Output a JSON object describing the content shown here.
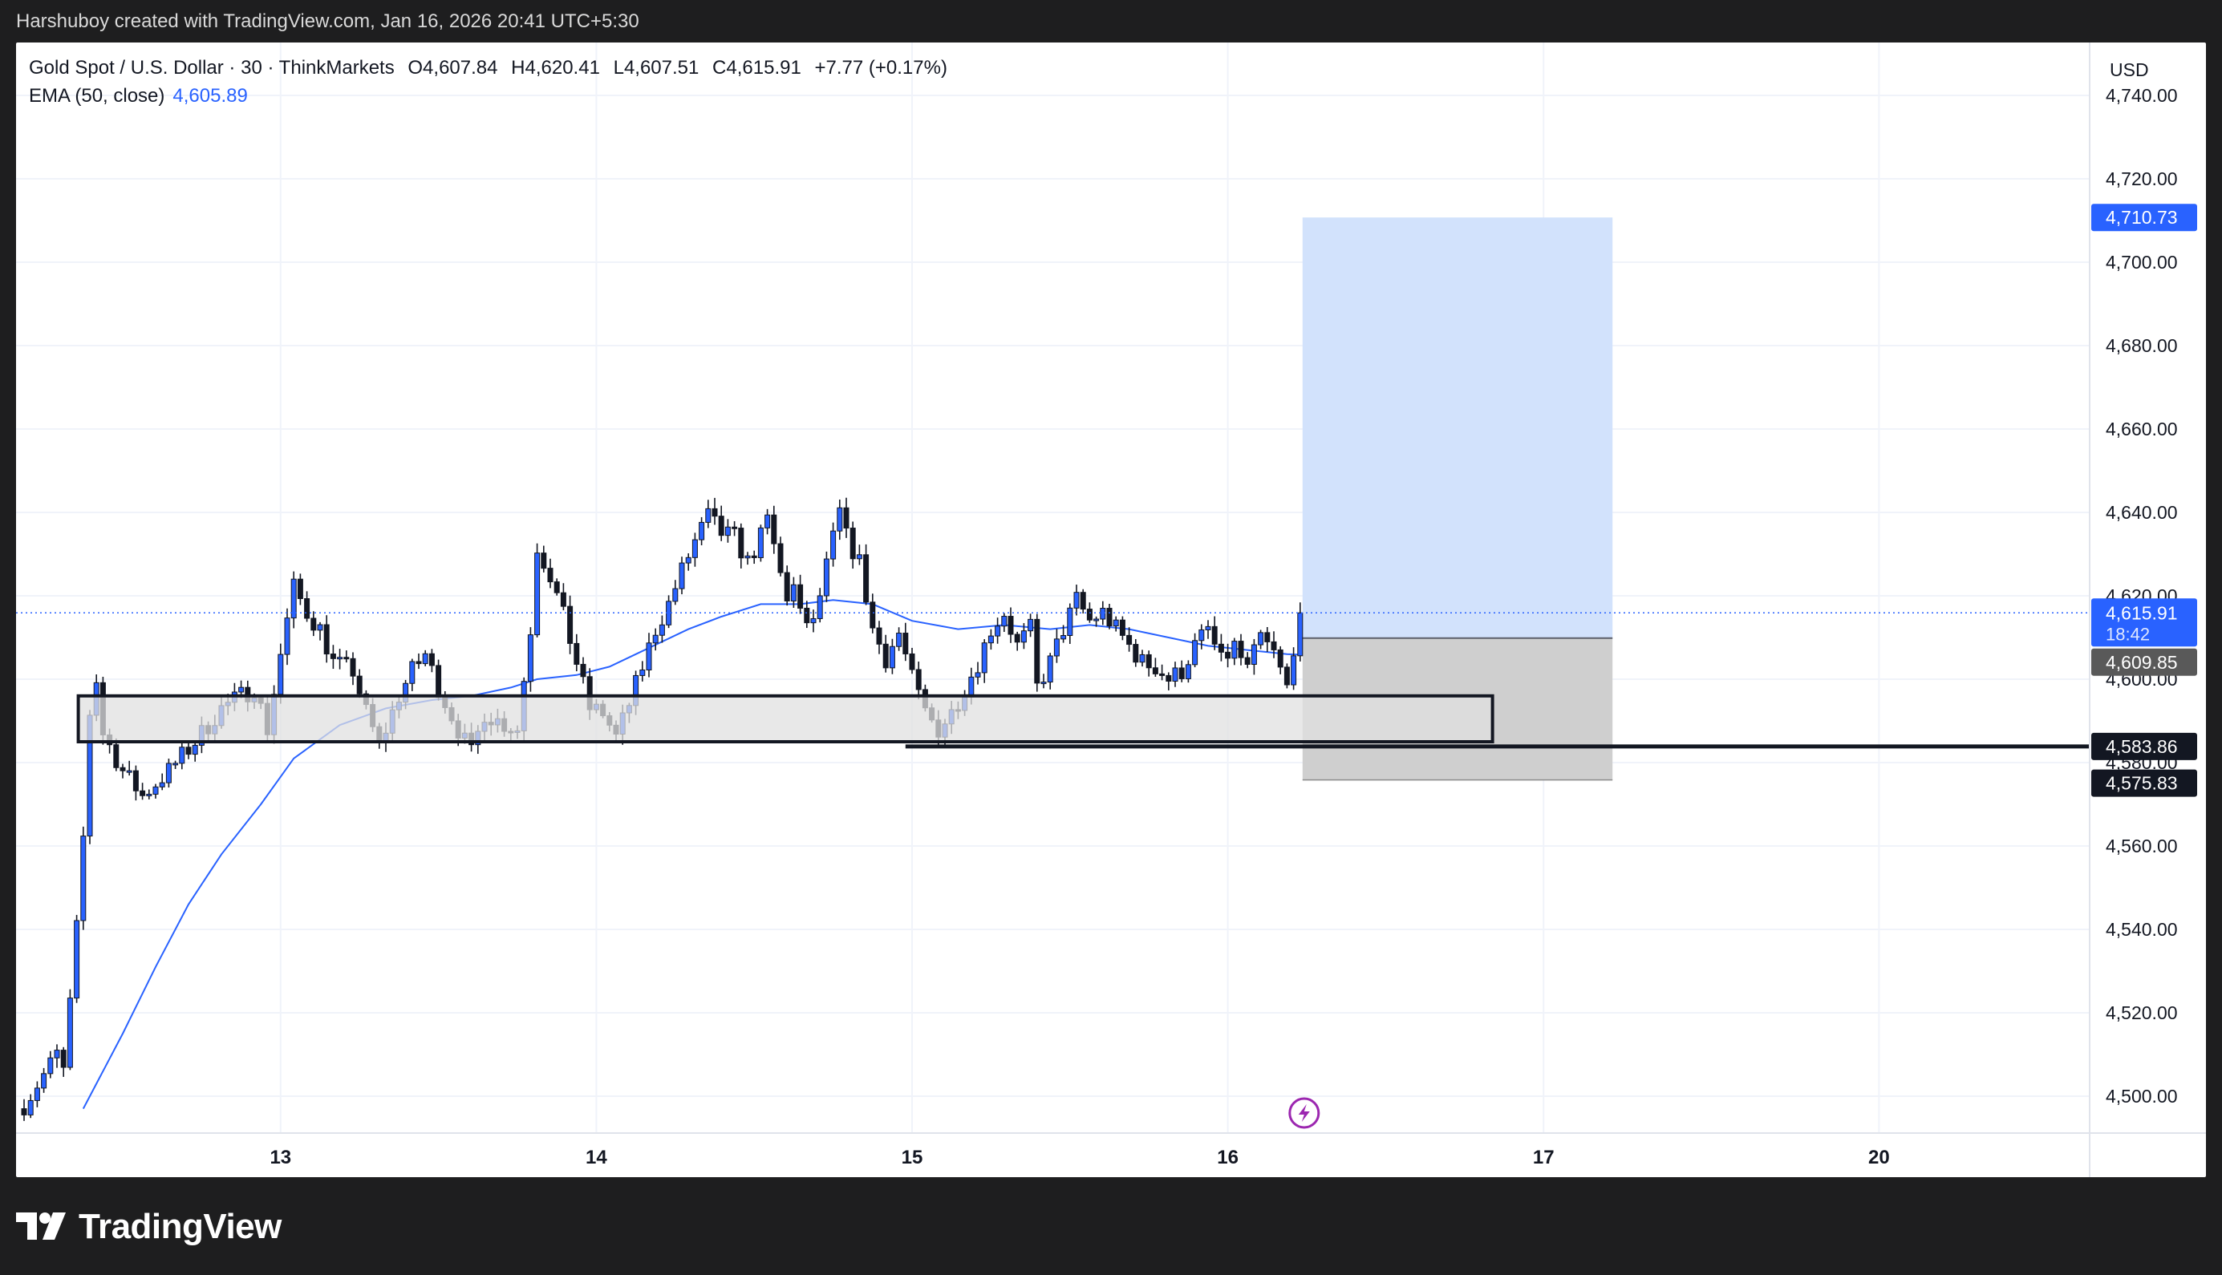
{
  "header": {
    "attribution": "Harshuboy created with TradingView.com, Jan 16, 2026 20:41 UTC+5:30"
  },
  "legend": {
    "symbol": "Gold Spot / U.S. Dollar · 30 · ThinkMarkets",
    "open": "O4,607.84",
    "high": "H4,620.41",
    "low": "L4,607.51",
    "close": "C4,615.91",
    "change": "+7.77 (+0.17%)",
    "ema_label": "EMA (50, close)",
    "ema_value": "4,605.89"
  },
  "axis": {
    "currency": "USD",
    "ticks": [
      "4,740.00",
      "4,720.00",
      "4,700.00",
      "4,680.00",
      "4,660.00",
      "4,640.00",
      "4,620.00",
      "4,600.00",
      "4,580.00",
      "4,560.00",
      "4,540.00",
      "4,520.00",
      "4,500.00"
    ],
    "dates": [
      "13",
      "14",
      "15",
      "16",
      "17",
      "20"
    ]
  },
  "price_labels": {
    "target": "4,710.73",
    "current": "4,615.91",
    "countdown": "18:42",
    "entry": "4,609.85",
    "line": "4,583.86",
    "stop": "4,575.83"
  },
  "colors": {
    "bull_body": "#2962ff",
    "bear_body": "#131722",
    "ema": "#2962ff",
    "target_zone": "#d2e2fc",
    "stop_zone": "#cfcfcf",
    "support_box": "#e0e0e0",
    "label_blue": "#2962ff",
    "label_dark": "#131722",
    "label_gray": "#595959"
  },
  "footer": {
    "brand": "TradingView",
    "logo_icon": "tradingview-logo-icon"
  },
  "chart_data": {
    "type": "candlestick",
    "title": "Gold Spot / U.S. Dollar · 30 · ThinkMarkets",
    "ylabel": "USD",
    "ylim": [
      4495,
      4745
    ],
    "x_ticks": [
      "13",
      "14",
      "15",
      "16",
      "17",
      "20"
    ],
    "candles_per_day": 48,
    "first_date_tick_index": 39,
    "keypoints": [
      [
        0,
        4498
      ],
      [
        5,
        4510
      ],
      [
        6,
        4506
      ],
      [
        7,
        4522
      ],
      [
        8,
        4540
      ],
      [
        9,
        4562
      ],
      [
        10,
        4592
      ],
      [
        11,
        4600
      ],
      [
        12,
        4587
      ],
      [
        15,
        4578
      ],
      [
        18,
        4572
      ],
      [
        22,
        4578
      ],
      [
        26,
        4585
      ],
      [
        30,
        4593
      ],
      [
        35,
        4598
      ],
      [
        37,
        4588
      ],
      [
        39,
        4606
      ],
      [
        41,
        4622
      ],
      [
        43,
        4616
      ],
      [
        45,
        4612
      ],
      [
        47,
        4604
      ],
      [
        50,
        4602
      ],
      [
        52,
        4592
      ],
      [
        54,
        4584
      ],
      [
        57,
        4596
      ],
      [
        59,
        4602
      ],
      [
        61,
        4606
      ],
      [
        63,
        4598
      ],
      [
        66,
        4588
      ],
      [
        68,
        4582
      ],
      [
        70,
        4592
      ],
      [
        72,
        4590
      ],
      [
        75,
        4588
      ],
      [
        77,
        4612
      ],
      [
        78,
        4632
      ],
      [
        80,
        4625
      ],
      [
        82,
        4615
      ],
      [
        84,
        4604
      ],
      [
        86,
        4593
      ],
      [
        88,
        4592
      ],
      [
        90,
        4586
      ],
      [
        92,
        4594
      ],
      [
        94,
        4603
      ],
      [
        96,
        4612
      ],
      [
        98,
        4618
      ],
      [
        100,
        4626
      ],
      [
        102,
        4633
      ],
      [
        104,
        4639
      ],
      [
        106,
        4635
      ],
      [
        108,
        4634
      ],
      [
        110,
        4628
      ],
      [
        112,
        4634
      ],
      [
        113,
        4638
      ],
      [
        114,
        4632
      ],
      [
        115,
        4625
      ],
      [
        116,
        4620
      ],
      [
        117,
        4622
      ],
      [
        118,
        4615
      ],
      [
        120,
        4613
      ],
      [
        122,
        4627
      ],
      [
        124,
        4640
      ],
      [
        125,
        4634
      ],
      [
        127,
        4628
      ],
      [
        128,
        4620
      ],
      [
        129,
        4612
      ],
      [
        131,
        4605
      ],
      [
        133,
        4611
      ],
      [
        135,
        4600
      ],
      [
        137,
        4592
      ],
      [
        139,
        4588
      ],
      [
        141,
        4592
      ],
      [
        143,
        4598
      ],
      [
        145,
        4604
      ],
      [
        147,
        4612
      ],
      [
        149,
        4616
      ],
      [
        151,
        4608
      ],
      [
        153,
        4612
      ],
      [
        154,
        4598
      ],
      [
        156,
        4604
      ],
      [
        158,
        4612
      ],
      [
        160,
        4619
      ],
      [
        162,
        4614
      ],
      [
        164,
        4616
      ],
      [
        166,
        4612
      ],
      [
        168,
        4608
      ],
      [
        170,
        4604
      ],
      [
        172,
        4603
      ],
      [
        174,
        4600
      ],
      [
        176,
        4602
      ],
      [
        178,
        4608
      ],
      [
        180,
        4612
      ],
      [
        182,
        4604
      ],
      [
        184,
        4608
      ],
      [
        186,
        4602
      ],
      [
        188,
        4610
      ],
      [
        190,
        4606
      ],
      [
        192,
        4598
      ],
      [
        193,
        4608
      ],
      [
        194,
        4615.91
      ]
    ],
    "ema": {
      "name": "EMA (50, close)",
      "points": [
        [
          9,
          4497
        ],
        [
          15,
          4515
        ],
        [
          20,
          4531
        ],
        [
          25,
          4546
        ],
        [
          30,
          4558
        ],
        [
          36,
          4570
        ],
        [
          41,
          4581
        ],
        [
          48,
          4589
        ],
        [
          55,
          4593
        ],
        [
          62,
          4595
        ],
        [
          68,
          4596
        ],
        [
          74,
          4598
        ],
        [
          78,
          4600
        ],
        [
          84,
          4601
        ],
        [
          89,
          4603
        ],
        [
          93,
          4606
        ],
        [
          97,
          4609
        ],
        [
          101,
          4612
        ],
        [
          106,
          4615
        ],
        [
          112,
          4618
        ],
        [
          118,
          4618
        ],
        [
          123,
          4619
        ],
        [
          129,
          4618
        ],
        [
          135,
          4614
        ],
        [
          142,
          4612
        ],
        [
          149,
          4613
        ],
        [
          156,
          4612
        ],
        [
          162,
          4613
        ],
        [
          168,
          4612
        ],
        [
          174,
          4610
        ],
        [
          180,
          4608
        ],
        [
          186,
          4607
        ],
        [
          192,
          4606
        ],
        [
          194,
          4605.89
        ]
      ]
    },
    "position": {
      "type": "long",
      "entry": 4609.85,
      "target": 4710.73,
      "stop": 4575.83,
      "x_start_index": 194,
      "x_end_index": 241
    },
    "support_box": {
      "top": 4596,
      "bottom": 4585,
      "x_start_index": 8,
      "x_end_index": 223
    },
    "horizontal_line": {
      "price": 4583.86,
      "x_start_index": 134
    },
    "current_price": 4615.91,
    "bar_countdown": "18:42"
  }
}
